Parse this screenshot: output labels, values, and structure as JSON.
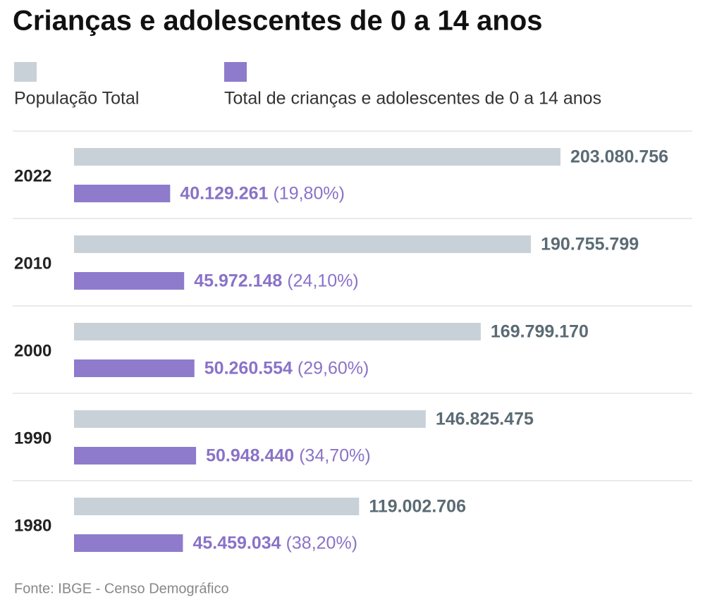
{
  "chart_data": {
    "type": "bar",
    "orientation": "horizontal",
    "title": "Crianças e adolescentes de 0 a 14 anos",
    "categories": [
      "2022",
      "2010",
      "2000",
      "1990",
      "1980"
    ],
    "series": [
      {
        "name": "População Total",
        "color": "#c9d1d8",
        "label_color": "#5b6b74",
        "values": [
          203080756,
          190755799,
          169799170,
          146825475,
          119002706
        ],
        "value_labels": [
          "203.080.756",
          "190.755.799",
          "169.799.170",
          "146.825.475",
          "119.002.706"
        ]
      },
      {
        "name": "Total de crianças e adolescentes de 0 a 14 anos",
        "color": "#8e7bcc",
        "label_color": "#8a72c8",
        "values": [
          40129261,
          45972148,
          50260554,
          50948440,
          45459034
        ],
        "value_labels": [
          "40.129.261",
          "45.972.148",
          "50.260.554",
          "50.948.440",
          "45.459.034"
        ],
        "share_labels": [
          "(19,80%)",
          "(24,10%)",
          "(29,60%)",
          "(34,70%)",
          "(38,20%)"
        ]
      }
    ],
    "source": "Fonte: IBGE - Censo Demográfico"
  }
}
